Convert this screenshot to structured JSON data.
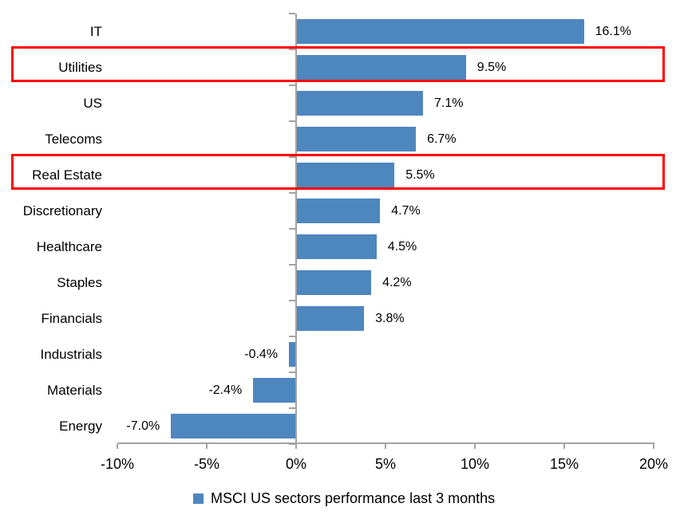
{
  "chart_data": {
    "type": "bar",
    "orientation": "horizontal",
    "categories": [
      "IT",
      "Utilities",
      "US",
      "Telecoms",
      "Real Estate",
      "Discretionary",
      "Healthcare",
      "Staples",
      "Financials",
      "Industrials",
      "Materials",
      "Energy"
    ],
    "values": [
      16.1,
      9.5,
      7.1,
      6.7,
      5.5,
      4.7,
      4.5,
      4.2,
      3.8,
      -0.4,
      -2.4,
      -7.0
    ],
    "data_labels": [
      "16.1%",
      "9.5%",
      "7.1%",
      "6.7%",
      "5.5%",
      "4.7%",
      "4.5%",
      "4.2%",
      "3.8%",
      "-0.4%",
      "-2.4%",
      "-7.0%"
    ],
    "x_ticks": [
      -10,
      -5,
      0,
      5,
      10,
      15,
      20
    ],
    "x_tick_labels": [
      "-10%",
      "-5%",
      "0%",
      "5%",
      "10%",
      "15%",
      "20%"
    ],
    "xlim": [
      -10,
      20
    ],
    "grid": false,
    "legend": "MSCI US sectors performance last 3 months",
    "legend_position": "bottom",
    "highlighted_categories": [
      "Utilities",
      "Real Estate"
    ],
    "bar_color": "#4e86be",
    "highlight_color": "#ff0000",
    "axis_color": "#a3a3a3",
    "text_color": "#000000"
  }
}
